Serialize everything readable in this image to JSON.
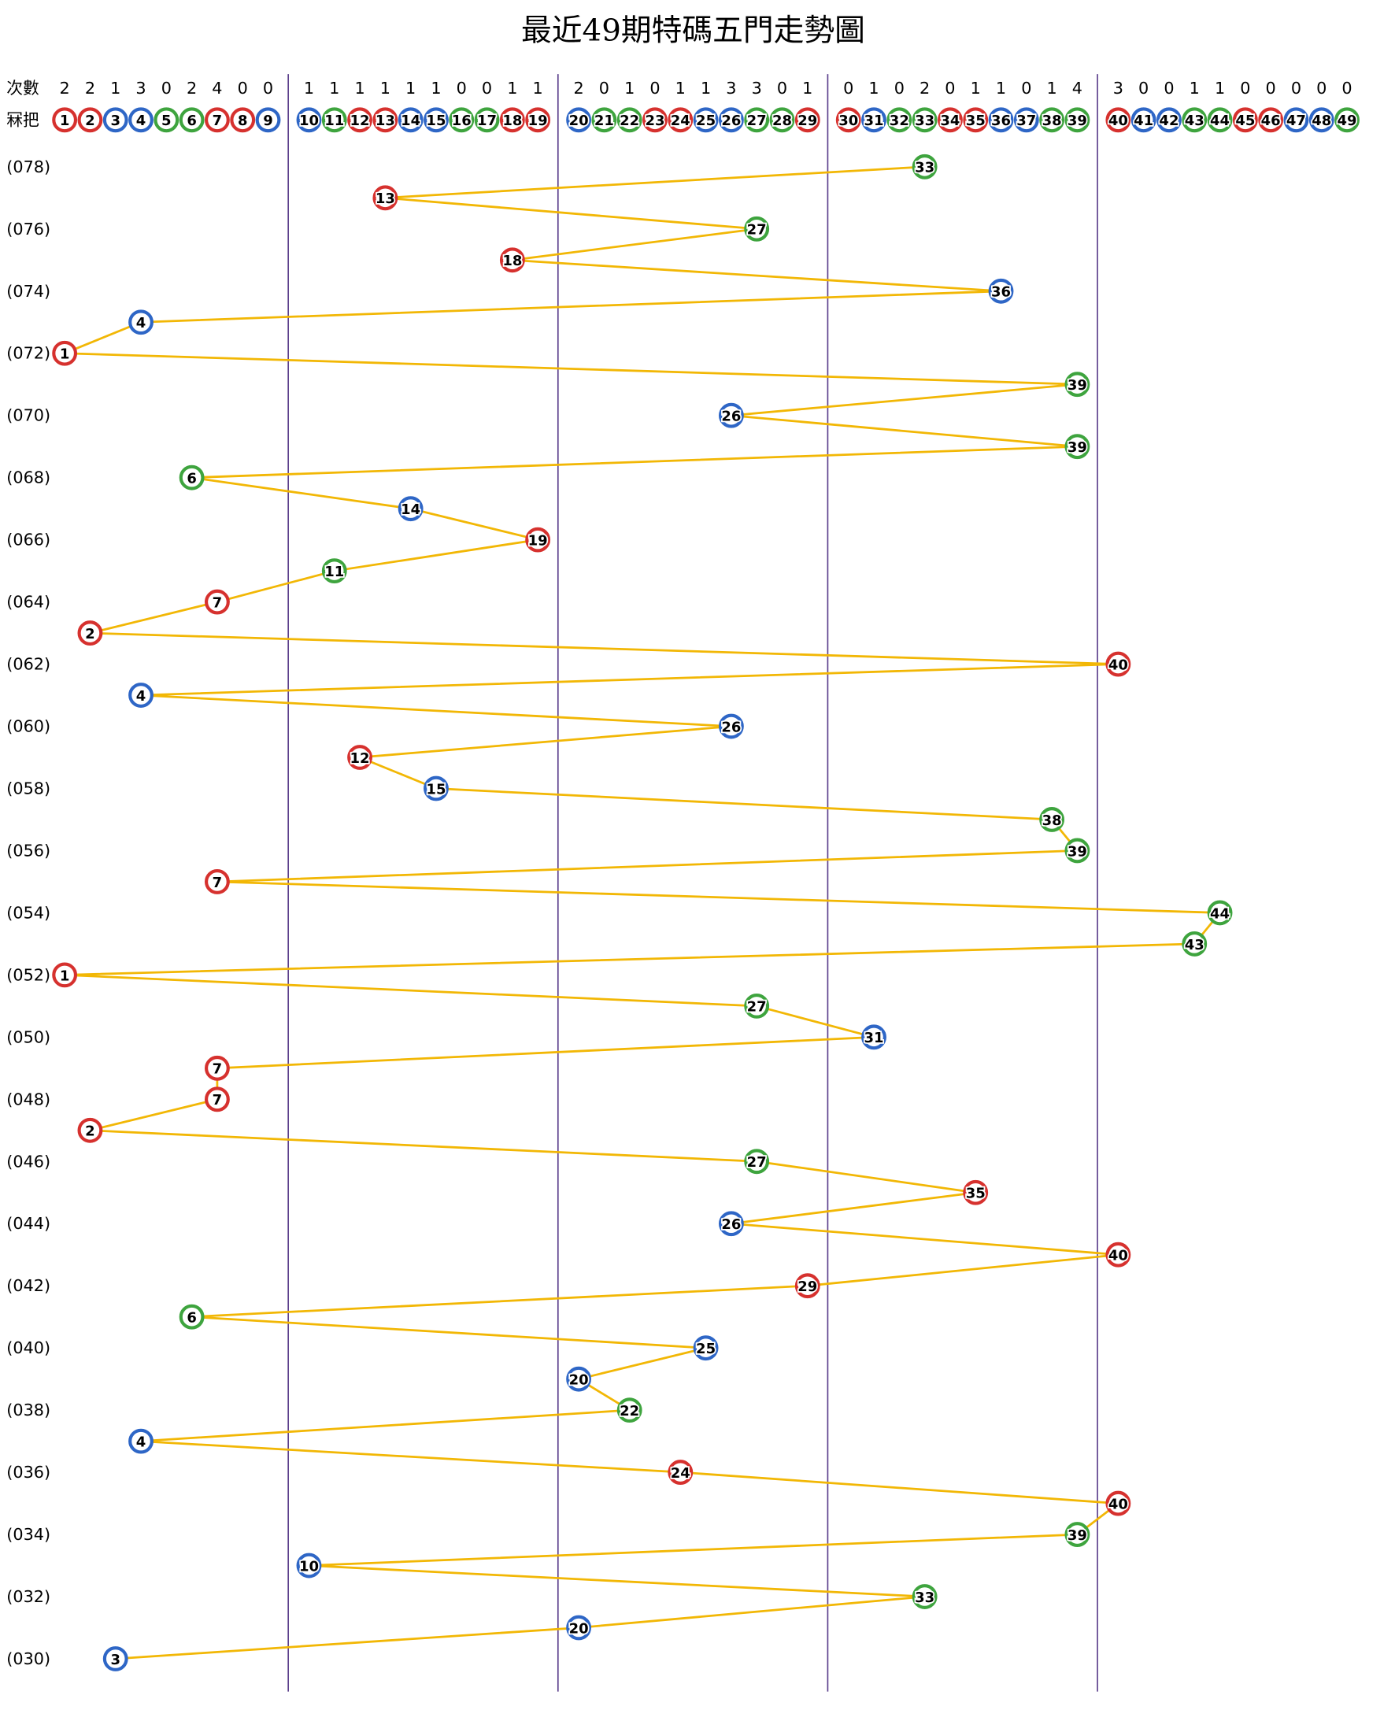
{
  "chart_data": {
    "type": "line",
    "title": "最近49期特碼五門走勢圖",
    "count_label": "次數",
    "number_label": "冧把",
    "numbers": [
      1,
      2,
      3,
      4,
      5,
      6,
      7,
      8,
      9,
      10,
      11,
      12,
      13,
      14,
      15,
      16,
      17,
      18,
      19,
      20,
      21,
      22,
      23,
      24,
      25,
      26,
      27,
      28,
      29,
      30,
      31,
      32,
      33,
      34,
      35,
      36,
      37,
      38,
      39,
      40,
      41,
      42,
      43,
      44,
      45,
      46,
      47,
      48,
      49
    ],
    "counts": [
      2,
      2,
      1,
      3,
      0,
      2,
      4,
      0,
      0,
      1,
      1,
      1,
      1,
      1,
      1,
      0,
      0,
      1,
      1,
      2,
      0,
      1,
      0,
      1,
      1,
      3,
      3,
      0,
      1,
      0,
      1,
      0,
      2,
      0,
      1,
      1,
      0,
      1,
      4,
      3,
      0,
      0,
      1,
      1,
      0,
      0,
      0,
      0,
      0
    ],
    "number_colors": [
      "#d6312e",
      "#d6312e",
      "#2e66c6",
      "#2e66c6",
      "#3ea43e",
      "#3ea43e",
      "#d6312e",
      "#d6312e",
      "#2e66c6",
      "#2e66c6",
      "#3ea43e",
      "#d6312e",
      "#d6312e",
      "#2e66c6",
      "#2e66c6",
      "#3ea43e",
      "#3ea43e",
      "#d6312e",
      "#d6312e",
      "#2e66c6",
      "#3ea43e",
      "#3ea43e",
      "#d6312e",
      "#d6312e",
      "#2e66c6",
      "#2e66c6",
      "#3ea43e",
      "#3ea43e",
      "#d6312e",
      "#d6312e",
      "#2e66c6",
      "#3ea43e",
      "#3ea43e",
      "#d6312e",
      "#d6312e",
      "#2e66c6",
      "#2e66c6",
      "#3ea43e",
      "#3ea43e",
      "#d6312e",
      "#2e66c6",
      "#2e66c6",
      "#3ea43e",
      "#3ea43e",
      "#d6312e",
      "#d6312e",
      "#2e66c6",
      "#2e66c6",
      "#3ea43e"
    ],
    "periods": [
      "(078)",
      null,
      "(076)",
      null,
      "(074)",
      null,
      "(072)",
      null,
      "(070)",
      null,
      "(068)",
      null,
      "(066)",
      null,
      "(064)",
      null,
      "(062)",
      null,
      "(060)",
      null,
      "(058)",
      null,
      "(056)",
      null,
      "(054)",
      null,
      "(052)",
      null,
      "(050)",
      null,
      "(048)",
      null,
      "(046)",
      null,
      "(044)",
      null,
      "(042)",
      null,
      "(040)",
      null,
      "(038)",
      null,
      "(036)",
      null,
      "(034)",
      null,
      "(032)",
      null,
      "(030)"
    ],
    "values": [
      33,
      13,
      27,
      18,
      36,
      4,
      1,
      39,
      26,
      39,
      6,
      14,
      19,
      11,
      7,
      2,
      40,
      4,
      26,
      12,
      15,
      38,
      39,
      7,
      44,
      43,
      1,
      27,
      31,
      7,
      7,
      2,
      27,
      35,
      26,
      40,
      29,
      6,
      25,
      20,
      22,
      4,
      24,
      40,
      39,
      10,
      33,
      20,
      3
    ],
    "line_color": "#f2b705",
    "separator_color": "#5b3f8c"
  }
}
